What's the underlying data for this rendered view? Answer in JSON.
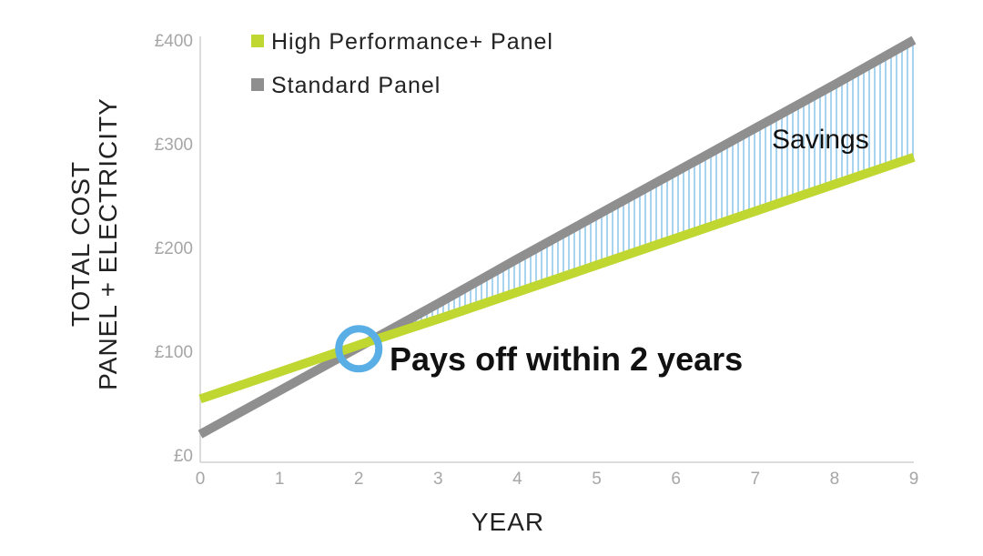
{
  "chart_data": {
    "type": "line",
    "x": [
      0,
      1,
      2,
      3,
      4,
      5,
      6,
      7,
      8,
      9
    ],
    "x_tick_labels": [
      "0",
      "1",
      "2",
      "3",
      "4",
      "5",
      "6",
      "7",
      "8",
      "9"
    ],
    "y_tick_values": [
      0,
      100,
      200,
      300,
      400
    ],
    "y_tick_labels": [
      "£0",
      "£100",
      "£200",
      "£300",
      "£400"
    ],
    "xlim": [
      0,
      9
    ],
    "ylim": [
      0,
      400
    ],
    "xlabel": "YEAR",
    "ylabel_line1": "TOTAL COST",
    "ylabel_line2": "PANEL + ELECTRICITY",
    "grid": false,
    "legend_position": "top-left",
    "series": [
      {
        "name": "High Performance+ Panel",
        "color": "#bfd730",
        "values": [
          54,
          80,
          106,
          131,
          157,
          183,
          209,
          235,
          261,
          287
        ]
      },
      {
        "name": "Standard Panel",
        "color": "#8f8f8f",
        "values": [
          20,
          62,
          104,
          146,
          189,
          231,
          273,
          315,
          357,
          400
        ]
      }
    ],
    "annotations": {
      "savings_label": "Savings",
      "savings_fill_color": "#a8d4f0",
      "breakeven_x": 2,
      "breakeven_y": 105,
      "breakeven_marker_color": "#5aaee6",
      "callout_text": "Pays off within 2 years"
    }
  }
}
